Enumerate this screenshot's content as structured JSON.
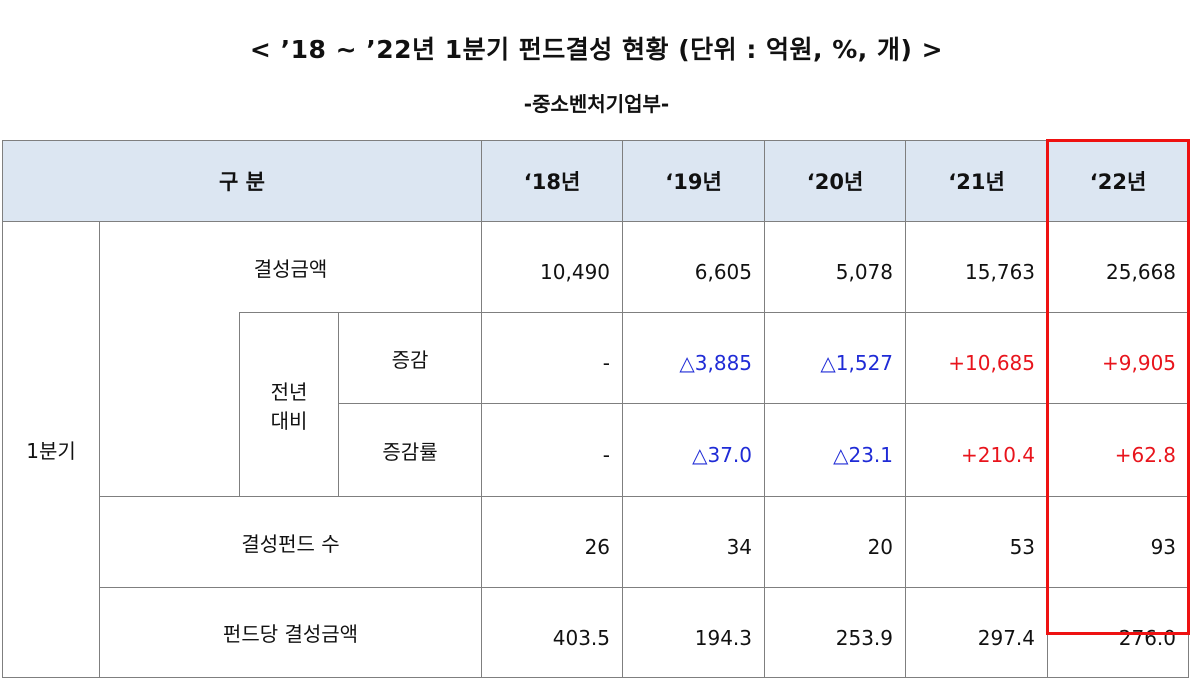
{
  "title": "< ’18 ~ ’22년 1분기 펀드결성 현황 (단위 : 억원, %, 개) >",
  "subtitle": "-중소벤처기업부-",
  "table": {
    "header": {
      "gubun": "구 분",
      "years": [
        "‘18년",
        "‘19년",
        "‘20년",
        "‘21년",
        "‘22년"
      ]
    },
    "quarter_label": "1분기",
    "compare_label_1": "전년",
    "compare_label_2": "대비",
    "rows": {
      "amount": {
        "label": "결성금액",
        "values": [
          "10,490",
          "6,605",
          "5,078",
          "15,763",
          "25,668"
        ]
      },
      "change": {
        "label": "증감",
        "values": [
          "-",
          "△3,885",
          "△1,527",
          "+10,685",
          "+9,905"
        ]
      },
      "rate": {
        "label": "증감률",
        "values": [
          "-",
          "△37.0",
          "△23.1",
          "+210.4",
          "+62.8"
        ]
      },
      "count": {
        "label": "결성펀드 수",
        "values": [
          "26",
          "34",
          "20",
          "53",
          "93"
        ]
      },
      "per_fund": {
        "label": "펀드당 결성금액",
        "values": [
          "403.5",
          "194.3",
          "253.9",
          "297.4",
          "276.0"
        ]
      }
    }
  },
  "colors": {
    "header_bg": "#dce6f2",
    "decrease": "#1f2bd6",
    "increase": "#e8141c",
    "highlight": "#e11111"
  }
}
